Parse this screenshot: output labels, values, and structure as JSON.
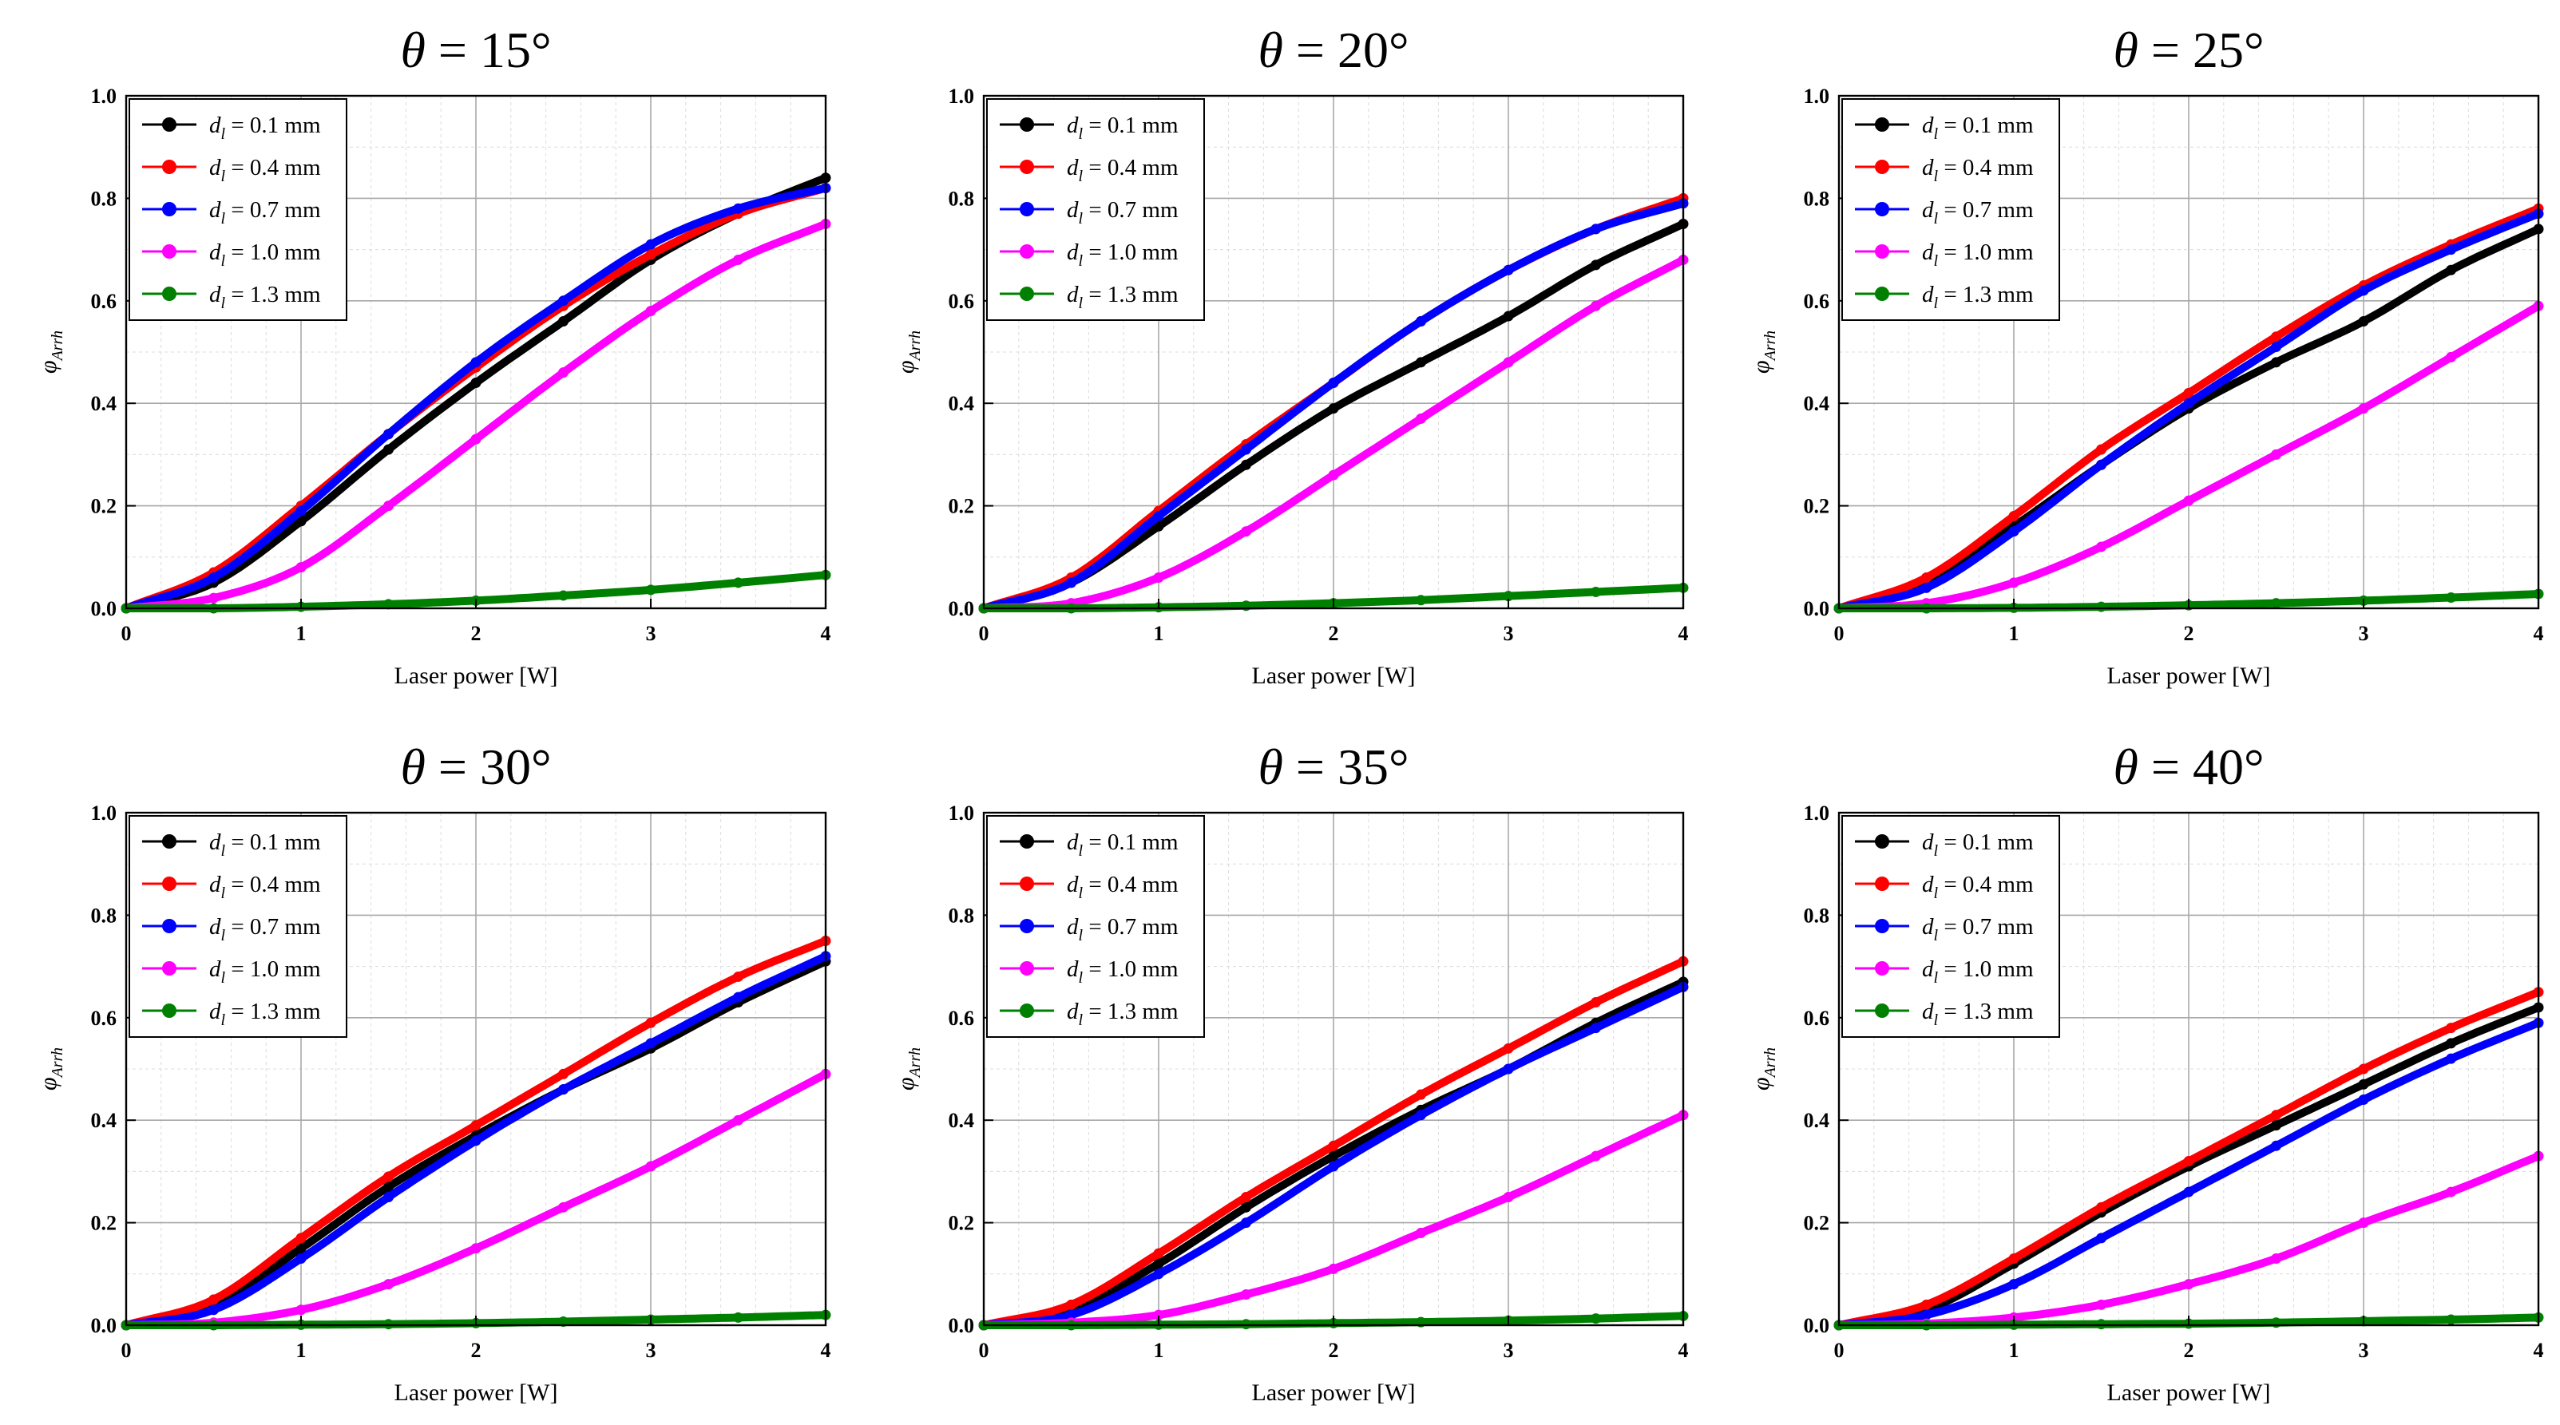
{
  "figure": {
    "xlabel": "Laser power [W]",
    "ylabel_main": "φ",
    "ylabel_sub": "Arrh"
  },
  "series_colors": {
    "d=0.1 mm": "#000000",
    "d=0.4 mm": "#ff0000",
    "d=0.7 mm": "#0000ff",
    "d=1.0 mm": "#ff00ff",
    "d=1.3 mm": "#008000"
  },
  "chart_data": [
    {
      "type": "line",
      "title": "θ = 15°",
      "title_symbol": "θ",
      "title_value": " = 15°",
      "xlabel": "Laser power [W]",
      "ylabel": "φArrh",
      "xlim": [
        0,
        4
      ],
      "ylim": [
        0,
        1.0
      ],
      "xticks": [
        "0",
        "1",
        "2",
        "3",
        "4"
      ],
      "yticks": [
        "0.0",
        "0.2",
        "0.4",
        "0.6",
        "0.8",
        "1.0"
      ],
      "x": [
        0,
        0.5,
        1,
        1.5,
        2,
        2.5,
        3,
        3.5,
        4
      ],
      "series": [
        {
          "name": "d = 0.1 mm",
          "sym": "d",
          "sub": "l",
          "value": " = 0.1 mm",
          "color": "#000000",
          "values": [
            0,
            0.05,
            0.17,
            0.31,
            0.44,
            0.56,
            0.68,
            0.77,
            0.84
          ]
        },
        {
          "name": "d = 0.4 mm",
          "sym": "d",
          "sub": "l",
          "value": " = 0.4 mm",
          "color": "#ff0000",
          "values": [
            0,
            0.07,
            0.2,
            0.34,
            0.47,
            0.59,
            0.69,
            0.77,
            0.82
          ]
        },
        {
          "name": "d = 0.7 mm",
          "sym": "d",
          "sub": "l",
          "value": " = 0.7 mm",
          "color": "#0000ff",
          "values": [
            0,
            0.06,
            0.19,
            0.34,
            0.48,
            0.6,
            0.71,
            0.78,
            0.82
          ]
        },
        {
          "name": "d = 1.0 mm",
          "sym": "d",
          "sub": "l",
          "value": " = 1.0 mm",
          "color": "#ff00ff",
          "values": [
            0,
            0.02,
            0.08,
            0.2,
            0.33,
            0.46,
            0.58,
            0.68,
            0.75
          ]
        },
        {
          "name": "d = 1.3 mm",
          "sym": "d",
          "sub": "l",
          "value": " = 1.3 mm",
          "color": "#008000",
          "values": [
            0,
            0,
            0.003,
            0.008,
            0.015,
            0.025,
            0.036,
            0.05,
            0.065
          ]
        }
      ]
    },
    {
      "type": "line",
      "title": "θ = 20°",
      "title_symbol": "θ",
      "title_value": " = 20°",
      "xlabel": "Laser power [W]",
      "ylabel": "φArrh",
      "xlim": [
        0,
        4
      ],
      "ylim": [
        0,
        1.0
      ],
      "xticks": [
        "0",
        "1",
        "2",
        "3",
        "4"
      ],
      "yticks": [
        "0.0",
        "0.2",
        "0.4",
        "0.6",
        "0.8",
        "1.0"
      ],
      "x": [
        0,
        0.5,
        1,
        1.5,
        2,
        2.5,
        3,
        3.5,
        4
      ],
      "series": [
        {
          "name": "d = 0.1 mm",
          "sym": "d",
          "sub": "l",
          "value": " = 0.1 mm",
          "color": "#000000",
          "values": [
            0,
            0.05,
            0.16,
            0.28,
            0.39,
            0.48,
            0.57,
            0.67,
            0.75
          ]
        },
        {
          "name": "d = 0.4 mm",
          "sym": "d",
          "sub": "l",
          "value": " = 0.4 mm",
          "color": "#ff0000",
          "values": [
            0,
            0.06,
            0.19,
            0.32,
            0.44,
            0.56,
            0.66,
            0.74,
            0.8
          ]
        },
        {
          "name": "d = 0.7 mm",
          "sym": "d",
          "sub": "l",
          "value": " = 0.7 mm",
          "color": "#0000ff",
          "values": [
            0,
            0.05,
            0.18,
            0.31,
            0.44,
            0.56,
            0.66,
            0.74,
            0.79
          ]
        },
        {
          "name": "d = 1.0 mm",
          "sym": "d",
          "sub": "l",
          "value": " = 1.0 mm",
          "color": "#ff00ff",
          "values": [
            0,
            0.01,
            0.06,
            0.15,
            0.26,
            0.37,
            0.48,
            0.59,
            0.68
          ]
        },
        {
          "name": "d = 1.3 mm",
          "sym": "d",
          "sub": "l",
          "value": " = 1.3 mm",
          "color": "#008000",
          "values": [
            0,
            0,
            0.002,
            0.005,
            0.01,
            0.016,
            0.024,
            0.032,
            0.04
          ]
        }
      ]
    },
    {
      "type": "line",
      "title": "θ = 25°",
      "title_symbol": "θ",
      "title_value": " = 25°",
      "xlabel": "Laser power [W]",
      "ylabel": "φArrh",
      "xlim": [
        0,
        4
      ],
      "ylim": [
        0,
        1.0
      ],
      "xticks": [
        "0",
        "1",
        "2",
        "3",
        "4"
      ],
      "yticks": [
        "0.0",
        "0.2",
        "0.4",
        "0.6",
        "0.8",
        "1.0"
      ],
      "x": [
        0,
        0.5,
        1,
        1.5,
        2,
        2.5,
        3,
        3.5,
        4
      ],
      "series": [
        {
          "name": "d = 0.1 mm",
          "sym": "d",
          "sub": "l",
          "value": " = 0.1 mm",
          "color": "#000000",
          "values": [
            0,
            0.05,
            0.16,
            0.28,
            0.39,
            0.48,
            0.56,
            0.66,
            0.74
          ]
        },
        {
          "name": "d = 0.4 mm",
          "sym": "d",
          "sub": "l",
          "value": " = 0.4 mm",
          "color": "#ff0000",
          "values": [
            0,
            0.06,
            0.18,
            0.31,
            0.42,
            0.53,
            0.63,
            0.71,
            0.78
          ]
        },
        {
          "name": "d = 0.7 mm",
          "sym": "d",
          "sub": "l",
          "value": " = 0.7 mm",
          "color": "#0000ff",
          "values": [
            0,
            0.04,
            0.15,
            0.28,
            0.4,
            0.51,
            0.62,
            0.7,
            0.77
          ]
        },
        {
          "name": "d = 1.0 mm",
          "sym": "d",
          "sub": "l",
          "value": " = 1.0 mm",
          "color": "#ff00ff",
          "values": [
            0,
            0.01,
            0.05,
            0.12,
            0.21,
            0.3,
            0.39,
            0.49,
            0.59
          ]
        },
        {
          "name": "d = 1.3 mm",
          "sym": "d",
          "sub": "l",
          "value": " = 1.3 mm",
          "color": "#008000",
          "values": [
            0,
            0,
            0.001,
            0.003,
            0.006,
            0.01,
            0.015,
            0.021,
            0.028
          ]
        }
      ]
    },
    {
      "type": "line",
      "title": "θ = 30°",
      "title_symbol": "θ",
      "title_value": " = 30°",
      "xlabel": "Laser power [W]",
      "ylabel": "φArrh",
      "xlim": [
        0,
        4
      ],
      "ylim": [
        0,
        1.0
      ],
      "xticks": [
        "0",
        "1",
        "2",
        "3",
        "4"
      ],
      "yticks": [
        "0.0",
        "0.2",
        "0.4",
        "0.6",
        "0.8",
        "1.0"
      ],
      "x": [
        0,
        0.5,
        1,
        1.5,
        2,
        2.5,
        3,
        3.5,
        4
      ],
      "series": [
        {
          "name": "d = 0.1 mm",
          "sym": "d",
          "sub": "l",
          "value": " = 0.1 mm",
          "color": "#000000",
          "values": [
            0,
            0.04,
            0.15,
            0.27,
            0.37,
            0.46,
            0.54,
            0.63,
            0.71
          ]
        },
        {
          "name": "d = 0.4 mm",
          "sym": "d",
          "sub": "l",
          "value": " = 0.4 mm",
          "color": "#ff0000",
          "values": [
            0,
            0.05,
            0.17,
            0.29,
            0.39,
            0.49,
            0.59,
            0.68,
            0.75
          ]
        },
        {
          "name": "d = 0.7 mm",
          "sym": "d",
          "sub": "l",
          "value": " = 0.7 mm",
          "color": "#0000ff",
          "values": [
            0,
            0.03,
            0.13,
            0.25,
            0.36,
            0.46,
            0.55,
            0.64,
            0.72
          ]
        },
        {
          "name": "d = 1.0 mm",
          "sym": "d",
          "sub": "l",
          "value": " = 1.0 mm",
          "color": "#ff00ff",
          "values": [
            0,
            0.005,
            0.03,
            0.08,
            0.15,
            0.23,
            0.31,
            0.4,
            0.49
          ]
        },
        {
          "name": "d = 1.3 mm",
          "sym": "d",
          "sub": "l",
          "value": " = 1.3 mm",
          "color": "#008000",
          "values": [
            0,
            0,
            0.001,
            0.002,
            0.004,
            0.007,
            0.011,
            0.015,
            0.02
          ]
        }
      ]
    },
    {
      "type": "line",
      "title": "θ = 35°",
      "title_symbol": "θ",
      "title_value": " = 35°",
      "xlabel": "Laser power [W]",
      "ylabel": "φArrh",
      "xlim": [
        0,
        4
      ],
      "ylim": [
        0,
        1.0
      ],
      "xticks": [
        "0",
        "1",
        "2",
        "3",
        "4"
      ],
      "yticks": [
        "0.0",
        "0.2",
        "0.4",
        "0.6",
        "0.8",
        "1.0"
      ],
      "x": [
        0,
        0.5,
        1,
        1.5,
        2,
        2.5,
        3,
        3.5,
        4
      ],
      "series": [
        {
          "name": "d = 0.1 mm",
          "sym": "d",
          "sub": "l",
          "value": " = 0.1 mm",
          "color": "#000000",
          "values": [
            0,
            0.03,
            0.12,
            0.23,
            0.33,
            0.42,
            0.5,
            0.59,
            0.67
          ]
        },
        {
          "name": "d = 0.4 mm",
          "sym": "d",
          "sub": "l",
          "value": " = 0.4 mm",
          "color": "#ff0000",
          "values": [
            0,
            0.04,
            0.14,
            0.25,
            0.35,
            0.45,
            0.54,
            0.63,
            0.71
          ]
        },
        {
          "name": "d = 0.7 mm",
          "sym": "d",
          "sub": "l",
          "value": " = 0.7 mm",
          "color": "#0000ff",
          "values": [
            0,
            0.02,
            0.1,
            0.2,
            0.31,
            0.41,
            0.5,
            0.58,
            0.66
          ]
        },
        {
          "name": "d = 1.0 mm",
          "sym": "d",
          "sub": "l",
          "value": " = 1.0 mm",
          "color": "#ff00ff",
          "values": [
            0,
            0.005,
            0.02,
            0.06,
            0.11,
            0.18,
            0.25,
            0.33,
            0.41
          ]
        },
        {
          "name": "d = 1.3 mm",
          "sym": "d",
          "sub": "l",
          "value": " = 1.3 mm",
          "color": "#008000",
          "values": [
            0,
            0,
            0.001,
            0.002,
            0.004,
            0.006,
            0.009,
            0.013,
            0.018
          ]
        }
      ]
    },
    {
      "type": "line",
      "title": "θ = 40°",
      "title_symbol": "θ",
      "title_value": " = 40°",
      "xlabel": "Laser power [W]",
      "ylabel": "φArrh",
      "xlim": [
        0,
        4
      ],
      "ylim": [
        0,
        1.0
      ],
      "xticks": [
        "0",
        "1",
        "2",
        "3",
        "4"
      ],
      "yticks": [
        "0.0",
        "0.2",
        "0.4",
        "0.6",
        "0.8",
        "1.0"
      ],
      "x": [
        0,
        0.5,
        1,
        1.5,
        2,
        2.5,
        3,
        3.5,
        4
      ],
      "series": [
        {
          "name": "d = 0.1 mm",
          "sym": "d",
          "sub": "l",
          "value": " = 0.1 mm",
          "color": "#000000",
          "values": [
            0,
            0.03,
            0.12,
            0.22,
            0.31,
            0.39,
            0.47,
            0.55,
            0.62
          ]
        },
        {
          "name": "d = 0.4 mm",
          "sym": "d",
          "sub": "l",
          "value": " = 0.4 mm",
          "color": "#ff0000",
          "values": [
            0,
            0.04,
            0.13,
            0.23,
            0.32,
            0.41,
            0.5,
            0.58,
            0.65
          ]
        },
        {
          "name": "d = 0.7 mm",
          "sym": "d",
          "sub": "l",
          "value": " = 0.7 mm",
          "color": "#0000ff",
          "values": [
            0,
            0.02,
            0.08,
            0.17,
            0.26,
            0.35,
            0.44,
            0.52,
            0.59
          ]
        },
        {
          "name": "d = 1.0 mm",
          "sym": "d",
          "sub": "l",
          "value": " = 1.0 mm",
          "color": "#ff00ff",
          "values": [
            0,
            0.003,
            0.015,
            0.04,
            0.08,
            0.13,
            0.2,
            0.26,
            0.33
          ]
        },
        {
          "name": "d = 1.3 mm",
          "sym": "d",
          "sub": "l",
          "value": " = 1.3 mm",
          "color": "#008000",
          "values": [
            0,
            0,
            0.001,
            0.002,
            0.003,
            0.005,
            0.008,
            0.011,
            0.015
          ]
        }
      ]
    }
  ]
}
